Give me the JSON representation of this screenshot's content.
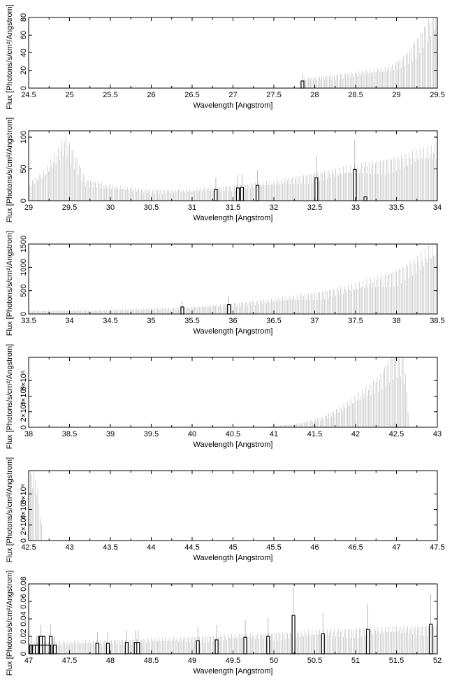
{
  "figure": {
    "ylabel": "Flux [Photons/s/cm²/Angstrom]",
    "xlabel": "Wavelength [Angstrom]"
  },
  "chart_data": [
    {
      "type": "bar",
      "xlim": [
        24.5,
        29.5
      ],
      "ylim": [
        0,
        80
      ],
      "xticks": [
        "24.5",
        "25",
        "25.5",
        "26",
        "26.5",
        "27",
        "27.5",
        "28",
        "28.5",
        "29",
        "29.5"
      ],
      "yticks": [
        "0",
        "20",
        "40",
        "60",
        "80"
      ],
      "xlabel": "Wavelength [Angstrom]",
      "ylabel": "Flux [Photons/s/cm²/Angstrom]",
      "continuum": {
        "start": 27.86,
        "end": 29.5,
        "points": [
          [
            27.86,
            9
          ],
          [
            28.4,
            14
          ],
          [
            28.9,
            20
          ],
          [
            29.1,
            30
          ],
          [
            29.3,
            52
          ],
          [
            29.45,
            72
          ],
          [
            29.5,
            78
          ]
        ]
      },
      "lines": [
        {
          "x": 27.85,
          "y": 8,
          "err": 16
        }
      ]
    },
    {
      "type": "bar",
      "xlim": [
        29,
        34
      ],
      "ylim": [
        0,
        110
      ],
      "xticks": [
        "29",
        "29.5",
        "30",
        "30.5",
        "31",
        "31.5",
        "32",
        "32.5",
        "33",
        "33.5",
        "34"
      ],
      "yticks": [
        "0",
        "50",
        "100"
      ],
      "xlabel": "Wavelength [Angstrom]",
      "ylabel": "Flux [Photons/s/cm²/Angstrom]",
      "continuum": {
        "start": 29,
        "end": 34,
        "points": [
          [
            29,
            22
          ],
          [
            29.2,
            40
          ],
          [
            29.35,
            65
          ],
          [
            29.45,
            85
          ],
          [
            29.55,
            65
          ],
          [
            29.7,
            28
          ],
          [
            30,
            20
          ],
          [
            30.5,
            14
          ],
          [
            31,
            15
          ],
          [
            31.5,
            20
          ],
          [
            32,
            26
          ],
          [
            32.5,
            36
          ],
          [
            33,
            46
          ],
          [
            33.5,
            57
          ],
          [
            34,
            72
          ]
        ]
      },
      "lines": [
        {
          "x": 31.29,
          "y": 18,
          "err": 36
        },
        {
          "x": 31.56,
          "y": 20,
          "err": 41
        },
        {
          "x": 31.61,
          "y": 21,
          "err": 42
        },
        {
          "x": 31.8,
          "y": 24,
          "err": 48
        },
        {
          "x": 32.52,
          "y": 36,
          "err": 70
        },
        {
          "x": 32.99,
          "y": 49,
          "err": 96
        },
        {
          "x": 33.12,
          "y": 6,
          "err": 6
        }
      ]
    },
    {
      "type": "bar",
      "xlim": [
        33.5,
        38.5
      ],
      "ylim": [
        0,
        1500
      ],
      "xticks": [
        "33.5",
        "34",
        "34.5",
        "35",
        "35.5",
        "36",
        "36.5",
        "37",
        "37.5",
        "38",
        "38.5"
      ],
      "yticks": [
        "0",
        "500",
        "1000",
        "1500"
      ],
      "xlabel": "Wavelength [Angstrom]",
      "ylabel": "Flux [Photons/s/cm²/Angstrom]",
      "continuum": {
        "start": 33.5,
        "end": 38.5,
        "points": [
          [
            33.5,
            60
          ],
          [
            34.5,
            75
          ],
          [
            35.5,
            130
          ],
          [
            36,
            190
          ],
          [
            36.5,
            270
          ],
          [
            37,
            380
          ],
          [
            37.5,
            530
          ],
          [
            38,
            780
          ],
          [
            38.3,
            1050
          ],
          [
            38.5,
            1300
          ]
        ]
      },
      "lines": [
        {
          "x": 35.38,
          "y": 150,
          "err": 260
        },
        {
          "x": 35.95,
          "y": 200,
          "err": 390
        }
      ]
    },
    {
      "type": "bar",
      "xlim": [
        38,
        43
      ],
      "ylim": [
        0,
        9000000
      ],
      "xticks": [
        "38",
        "38.5",
        "39",
        "39.5",
        "40",
        "40.5",
        "41",
        "41.5",
        "42",
        "42.5",
        "43"
      ],
      "yticks": [
        "0",
        "2×10⁶",
        "4×10⁶",
        "6×10⁶"
      ],
      "xlabel": "Wavelength [Angstrom]",
      "ylabel": "Flux [Photons/s/cm²/Angstrom]",
      "continuum": {
        "start": 40.9,
        "end": 42.65,
        "points": [
          [
            40.9,
            50000
          ],
          [
            41.3,
            400000
          ],
          [
            41.6,
            1100000
          ],
          [
            41.9,
            2600000
          ],
          [
            42.1,
            4000000
          ],
          [
            42.3,
            5500000
          ],
          [
            42.45,
            8000000
          ],
          [
            42.52,
            8200000
          ],
          [
            42.58,
            7900000
          ],
          [
            42.62,
            5000000
          ],
          [
            42.65,
            1200000
          ]
        ]
      },
      "lines": []
    },
    {
      "type": "bar",
      "xlim": [
        42.5,
        47.5
      ],
      "ylim": [
        0,
        9000000
      ],
      "xticks": [
        "42.5",
        "43",
        "43.5",
        "44",
        "44.5",
        "45",
        "45.5",
        "46",
        "46.5",
        "47",
        "47.5"
      ],
      "yticks": [
        "0",
        "2×10⁶",
        "4×10⁶",
        "6×10⁶"
      ],
      "xlabel": "Wavelength [Angstrom]",
      "ylabel": "Flux [Photons/s/cm²/Angstrom]",
      "continuum": {
        "start": 42.52,
        "end": 42.66,
        "points": [
          [
            42.52,
            8000000
          ],
          [
            42.58,
            7200000
          ],
          [
            42.62,
            5000000
          ],
          [
            42.66,
            1500000
          ]
        ]
      },
      "lines": []
    },
    {
      "type": "bar",
      "xlim": [
        47,
        52
      ],
      "ylim": [
        0,
        0.08
      ],
      "xticks": [
        "47",
        "47.5",
        "48",
        "48.5",
        "49",
        "49.5",
        "50",
        "50.5",
        "51",
        "51.5",
        "52"
      ],
      "yticks": [
        "0",
        "0.02",
        "0.04",
        "0.06",
        "0.08"
      ],
      "xlabel": "Wavelength [Angstrom]",
      "ylabel": "Flux [Photons/s/cm²/Angstrom]",
      "continuum": {
        "start": 47,
        "end": 52,
        "points": [
          [
            47,
            0.011
          ],
          [
            48,
            0.013
          ],
          [
            49,
            0.016
          ],
          [
            50,
            0.02
          ],
          [
            51,
            0.024
          ],
          [
            52,
            0.027
          ]
        ]
      },
      "lines": [
        {
          "x": 47.03,
          "y": 0.01,
          "err": 0.02
        },
        {
          "x": 47.1,
          "y": 0.01,
          "err": 0.02
        },
        {
          "x": 47.15,
          "y": 0.02,
          "err": 0.033
        },
        {
          "x": 47.27,
          "y": 0.02,
          "err": 0.033
        },
        {
          "x": 47.32,
          "y": 0.01,
          "err": 0.02
        },
        {
          "x": 47.84,
          "y": 0.012,
          "err": 0.025
        },
        {
          "x": 47.97,
          "y": 0.012,
          "err": 0.025
        },
        {
          "x": 48.2,
          "y": 0.013,
          "err": 0.027
        },
        {
          "x": 48.31,
          "y": 0.013,
          "err": 0.027
        },
        {
          "x": 48.34,
          "y": 0.013,
          "err": 0.027
        },
        {
          "x": 49.07,
          "y": 0.015,
          "err": 0.031
        },
        {
          "x": 49.3,
          "y": 0.016,
          "err": 0.033
        },
        {
          "x": 49.65,
          "y": 0.019,
          "err": 0.039
        },
        {
          "x": 49.93,
          "y": 0.02,
          "err": 0.041
        },
        {
          "x": 50.24,
          "y": 0.044,
          "err": 0.076
        },
        {
          "x": 50.6,
          "y": 0.023,
          "err": 0.047
        },
        {
          "x": 51.15,
          "y": 0.028,
          "err": 0.057
        },
        {
          "x": 51.92,
          "y": 0.034,
          "err": 0.069
        }
      ],
      "steps": [
        {
          "x0": 47.03,
          "x1": 47.27,
          "y": 0.01
        },
        {
          "x0": 47.12,
          "x1": 47.2,
          "y": 0.02
        }
      ]
    }
  ]
}
